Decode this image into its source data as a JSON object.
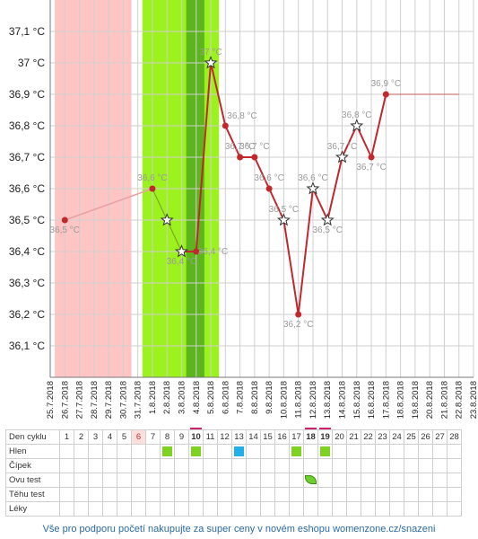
{
  "chart_data": {
    "type": "line",
    "title": "",
    "xlabel": "",
    "ylabel": "",
    "ylim": [
      36.0,
      37.2
    ],
    "y_ticks": [
      "36,1 °C",
      "36,2 °C",
      "36,3 °C",
      "36,4 °C",
      "36,5 °C",
      "36,6 °C",
      "36,7 °C",
      "36,8 °C",
      "36,9 °C",
      "37 °C",
      "37,1 °C"
    ],
    "x_tick_labels": [
      "25.7.2018",
      "26.7.2018",
      "27.7.2018",
      "28.7.2018",
      "29.7.2018",
      "30.7.2018",
      "31.7.2018",
      "1.8.2018",
      "2.8.2018",
      "3.8.2018",
      "4.8.2018",
      "5.8.2018",
      "6.8.2018",
      "7.8.2018",
      "8.8.2018",
      "9.8.2018",
      "10.8.2018",
      "11.8.2018",
      "12.8.2018",
      "13.8.2018",
      "14.8.2018",
      "15.8.2018",
      "16.8.2018",
      "17.8.2018",
      "18.8.2018",
      "19.8.2018",
      "20.8.2018",
      "21.8.2018",
      "22.8.2018",
      "23.8.2018"
    ],
    "grid": true,
    "shaded_regions": [
      {
        "from": "26.7.2018",
        "to": "30.7.2018",
        "color": "#ffc4c4"
      },
      {
        "from": "1.8.2018",
        "to": "5.8.2018",
        "color": "#9cf21c"
      },
      {
        "from": "4.8.2018",
        "to": "4.8.2018",
        "color": "#5cb51c"
      }
    ],
    "series": [
      {
        "color": "#c0282c",
        "points": [
          {
            "x": "26.7.2018",
            "y": 36.5,
            "label": "36,5 °C",
            "marker": "dot"
          },
          {
            "x": "1.8.2018",
            "y": 36.6,
            "label": "36,6 °C",
            "marker": "dot"
          },
          {
            "x": "2.8.2018",
            "y": 36.5,
            "label": "",
            "marker": "star"
          },
          {
            "x": "3.8.2018",
            "y": 36.4,
            "label": "36,4 °C",
            "marker": "star"
          },
          {
            "x": "4.8.2018",
            "y": 36.4,
            "label": "36,4 °C",
            "marker": "dot"
          },
          {
            "x": "5.8.2018",
            "y": 37.0,
            "label": "37 °C",
            "marker": "star"
          },
          {
            "x": "6.8.2018",
            "y": 36.8,
            "label": "36,8 °C",
            "marker": "dot"
          },
          {
            "x": "7.8.2018",
            "y": 36.7,
            "label": "36,7 °C",
            "marker": "dot"
          },
          {
            "x": "8.8.2018",
            "y": 36.7,
            "label": "36,7 °C",
            "marker": "dot"
          },
          {
            "x": "9.8.2018",
            "y": 36.6,
            "label": "36,6 °C",
            "marker": "dot"
          },
          {
            "x": "10.8.2018",
            "y": 36.5,
            "label": "36,5 °C",
            "marker": "star"
          },
          {
            "x": "11.8.2018",
            "y": 36.2,
            "label": "36,2 °C",
            "marker": "dot"
          },
          {
            "x": "12.8.2018",
            "y": 36.6,
            "label": "36,6 °C",
            "marker": "star"
          },
          {
            "x": "13.8.2018",
            "y": 36.5,
            "label": "36,5 °C",
            "marker": "star"
          },
          {
            "x": "14.8.2018",
            "y": 36.7,
            "label": "36,7 °C",
            "marker": "star"
          },
          {
            "x": "15.8.2018",
            "y": 36.8,
            "label": "36,8 °C",
            "marker": "star"
          },
          {
            "x": "16.8.2018",
            "y": 36.7,
            "label": "36,7 °C",
            "marker": "dot"
          },
          {
            "x": "17.8.2018",
            "y": 36.9,
            "label": "36,9 °C",
            "marker": "dot"
          }
        ],
        "projection": {
          "from": "17.8.2018",
          "to": "22.8.2018",
          "y": 36.9
        }
      }
    ]
  },
  "cycle_table": {
    "header_label": "Den cyklu",
    "days": [
      "1",
      "2",
      "3",
      "4",
      "5",
      "6",
      "7",
      "8",
      "9",
      "10",
      "11",
      "12",
      "13",
      "14",
      "15",
      "16",
      "17",
      "18",
      "19",
      "20",
      "21",
      "22",
      "23",
      "24",
      "25",
      "26",
      "27",
      "28"
    ],
    "highlight_day": "6",
    "current_days": [
      "10",
      "18",
      "19"
    ],
    "rows": [
      {
        "label": "Hlen",
        "marks": [
          {
            "day": "8",
            "kind": "green"
          },
          {
            "day": "10",
            "kind": "green"
          },
          {
            "day": "13",
            "kind": "blue"
          },
          {
            "day": "17",
            "kind": "green"
          },
          {
            "day": "19",
            "kind": "green"
          }
        ]
      },
      {
        "label": "Čípek",
        "marks": []
      },
      {
        "label": "Ovu test",
        "marks": [
          {
            "day": "18",
            "kind": "leaf"
          }
        ]
      },
      {
        "label": "Těhu test",
        "marks": []
      },
      {
        "label": "Léky",
        "marks": []
      }
    ]
  },
  "footer": {
    "text": "Vše pro podporu početí nakupujte za super ceny v novém eshopu womenzone.cz/snazeni"
  },
  "colors": {
    "line": "#c0282c",
    "projection": "#c45a5a",
    "period_band": "#ffc4c4",
    "fertile_band": "#9cf21c",
    "ovulation_band": "#5cb51c",
    "grid": "#cfcfcf",
    "footer_text": "#2a6aa5"
  }
}
